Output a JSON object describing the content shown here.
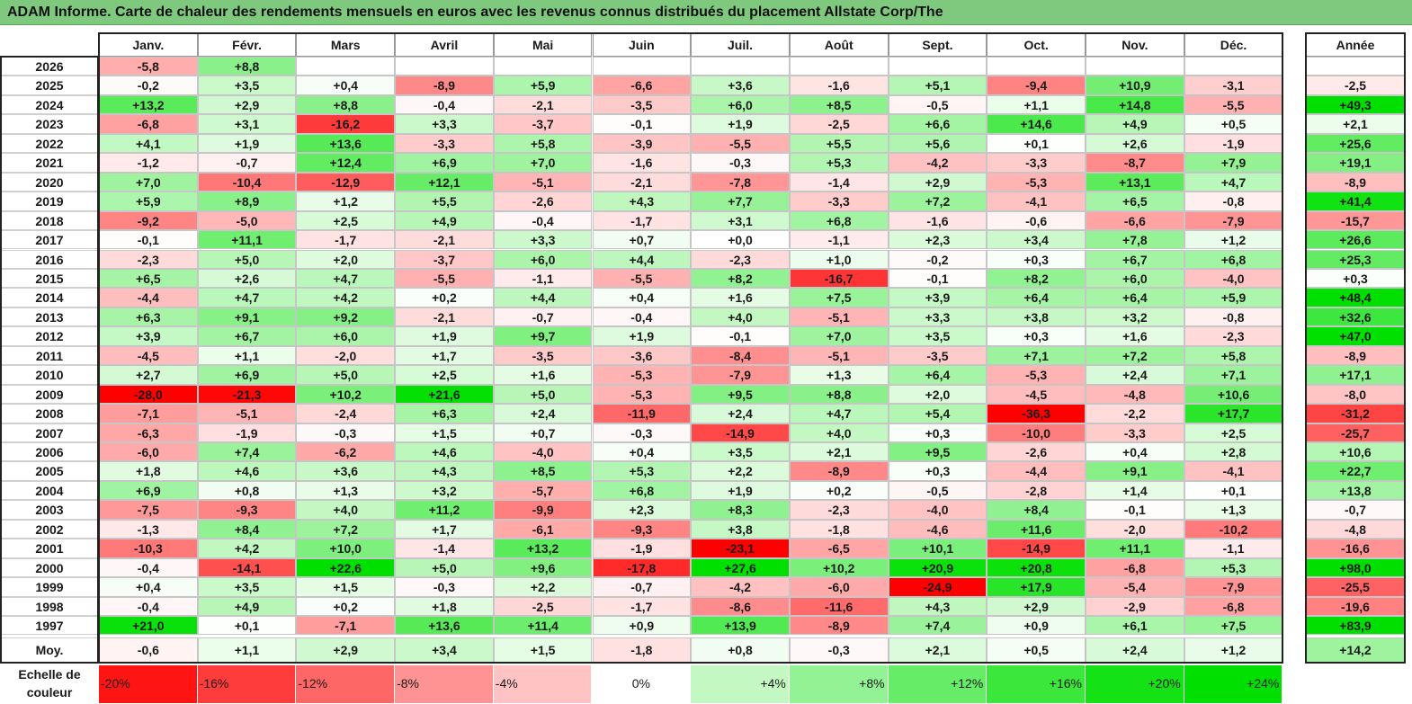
{
  "title": "ADAM Informe. Carte de chaleur des rendements mensuels en euros avec les revenus connus distribués du placement Allstate Corp/The",
  "chart_data": {
    "type": "heatmap",
    "columns": [
      "Janv.",
      "Févr.",
      "Mars",
      "Avril",
      "Mai",
      "Juin",
      "Juil.",
      "Août",
      "Sept.",
      "Oct.",
      "Nov.",
      "Déc."
    ],
    "year_header": "Année",
    "rows": [
      {
        "label": "2026",
        "cells": [
          "-5,8",
          "+8,8",
          "",
          "",
          "",
          "",
          "",
          "",
          "",
          "",
          "",
          ""
        ],
        "year": ""
      },
      {
        "label": "2025",
        "cells": [
          "-0,2",
          "+3,5",
          "+0,4",
          "-8,9",
          "+5,9",
          "-6,6",
          "+3,6",
          "-1,6",
          "+5,1",
          "-9,4",
          "+10,9",
          "-3,1"
        ],
        "year": "-2,5"
      },
      {
        "label": "2024",
        "cells": [
          "+13,2",
          "+2,9",
          "+8,8",
          "-0,4",
          "-2,1",
          "-3,5",
          "+6,0",
          "+8,5",
          "-0,5",
          "+1,1",
          "+14,8",
          "-5,5"
        ],
        "year": "+49,3"
      },
      {
        "label": "2023",
        "cells": [
          "-6,8",
          "+3,1",
          "-16,2",
          "+3,3",
          "-3,7",
          "-0,1",
          "+1,9",
          "-2,5",
          "+6,6",
          "+14,6",
          "+4,9",
          "+0,5"
        ],
        "year": "+2,1"
      },
      {
        "label": "2022",
        "cells": [
          "+4,1",
          "+1,9",
          "+13,6",
          "-3,3",
          "+5,8",
          "-3,9",
          "-5,5",
          "+5,5",
          "+5,6",
          "+0,1",
          "+2,6",
          "-1,9"
        ],
        "year": "+25,6"
      },
      {
        "label": "2021",
        "cells": [
          "-1,2",
          "-0,7",
          "+12,4",
          "+6,9",
          "+7,0",
          "-1,6",
          "-0,3",
          "+5,3",
          "-4,2",
          "-3,3",
          "-8,7",
          "+7,9"
        ],
        "year": "+19,1"
      },
      {
        "label": "2020",
        "cells": [
          "+7,0",
          "-10,4",
          "-12,9",
          "+12,1",
          "-5,1",
          "-2,1",
          "-7,8",
          "-1,4",
          "+2,9",
          "-5,3",
          "+13,1",
          "+4,7"
        ],
        "year": "-8,9"
      },
      {
        "label": "2019",
        "cells": [
          "+5,9",
          "+8,9",
          "+1,2",
          "+5,5",
          "-2,6",
          "+4,3",
          "+7,7",
          "-3,3",
          "+7,2",
          "-4,1",
          "+6,5",
          "-0,8"
        ],
        "year": "+41,4"
      },
      {
        "label": "2018",
        "cells": [
          "-9,2",
          "-5,0",
          "+2,5",
          "+4,9",
          "-0,4",
          "-1,7",
          "+3,1",
          "+6,8",
          "-1,6",
          "-0,6",
          "-6,6",
          "-7,9"
        ],
        "year": "-15,7"
      },
      {
        "label": "2017",
        "cells": [
          "-0,1",
          "+11,1",
          "-1,7",
          "-2,1",
          "+3,3",
          "+0,7",
          "+0,0",
          "-1,1",
          "+2,3",
          "+3,4",
          "+7,8",
          "+1,2"
        ],
        "year": "+26,6"
      },
      {
        "label": "2016",
        "cells": [
          "-2,3",
          "+5,0",
          "+2,0",
          "-3,7",
          "+6,0",
          "+4,4",
          "-2,3",
          "+1,0",
          "-0,2",
          "+0,3",
          "+6,7",
          "+6,8"
        ],
        "year": "+25,3"
      },
      {
        "label": "2015",
        "cells": [
          "+6,5",
          "+2,6",
          "+4,7",
          "-5,5",
          "-1,1",
          "-5,5",
          "+8,2",
          "-16,7",
          "-0,1",
          "+8,2",
          "+6,0",
          "-4,0"
        ],
        "year": "+0,3"
      },
      {
        "label": "2014",
        "cells": [
          "-4,4",
          "+4,7",
          "+4,2",
          "+0,2",
          "+4,4",
          "+0,4",
          "+1,6",
          "+7,5",
          "+3,9",
          "+6,4",
          "+6,4",
          "+5,9"
        ],
        "year": "+48,4"
      },
      {
        "label": "2013",
        "cells": [
          "+6,3",
          "+9,1",
          "+9,2",
          "-2,1",
          "-0,7",
          "-0,4",
          "+4,0",
          "-5,1",
          "+3,3",
          "+3,8",
          "+3,2",
          "-0,8"
        ],
        "year": "+32,6"
      },
      {
        "label": "2012",
        "cells": [
          "+3,9",
          "+6,7",
          "+6,0",
          "+1,9",
          "+9,7",
          "+1,9",
          "-0,1",
          "+7,0",
          "+3,5",
          "+0,3",
          "+1,6",
          "-2,3"
        ],
        "year": "+47,0"
      },
      {
        "label": "2011",
        "cells": [
          "-4,5",
          "+1,1",
          "-2,0",
          "+1,7",
          "-3,5",
          "-3,6",
          "-8,4",
          "-5,1",
          "-3,5",
          "+7,1",
          "+7,2",
          "+5,8"
        ],
        "year": "-8,9"
      },
      {
        "label": "2010",
        "cells": [
          "+2,7",
          "+6,9",
          "+5,0",
          "+2,5",
          "+1,6",
          "-5,3",
          "-7,9",
          "+1,3",
          "+6,4",
          "-5,3",
          "+2,4",
          "+7,1"
        ],
        "year": "+17,1"
      },
      {
        "label": "2009",
        "cells": [
          "-28,0",
          "-21,3",
          "+10,2",
          "+21,6",
          "+5,0",
          "-5,3",
          "+9,5",
          "+8,8",
          "+2,0",
          "-4,5",
          "-4,8",
          "+10,6"
        ],
        "year": "-8,0"
      },
      {
        "label": "2008",
        "cells": [
          "-7,1",
          "-5,1",
          "-2,4",
          "+6,3",
          "+2,4",
          "-11,9",
          "+2,4",
          "+4,7",
          "+5,4",
          "-36,3",
          "-2,2",
          "+17,7"
        ],
        "year": "-31,2"
      },
      {
        "label": "2007",
        "cells": [
          "-6,3",
          "-1,9",
          "-0,3",
          "+1,5",
          "+0,7",
          "-0,3",
          "-14,9",
          "+4,0",
          "+0,3",
          "-10,0",
          "-3,3",
          "+2,5"
        ],
        "year": "-25,7"
      },
      {
        "label": "2006",
        "cells": [
          "-6,0",
          "+7,4",
          "-6,2",
          "+4,6",
          "-4,0",
          "+0,4",
          "+3,5",
          "+2,1",
          "+9,5",
          "-2,6",
          "+0,4",
          "+2,8"
        ],
        "year": "+10,6"
      },
      {
        "label": "2005",
        "cells": [
          "+1,8",
          "+4,6",
          "+3,6",
          "+4,3",
          "+8,5",
          "+5,3",
          "+2,2",
          "-8,9",
          "+0,3",
          "-4,4",
          "+9,1",
          "-4,1"
        ],
        "year": "+22,7"
      },
      {
        "label": "2004",
        "cells": [
          "+6,9",
          "+0,8",
          "+1,3",
          "+3,2",
          "-5,7",
          "+6,8",
          "+1,9",
          "+0,2",
          "-0,5",
          "-2,8",
          "+1,4",
          "+0,1"
        ],
        "year": "+13,8"
      },
      {
        "label": "2003",
        "cells": [
          "-7,5",
          "-9,3",
          "+4,0",
          "+11,2",
          "-9,9",
          "+2,3",
          "+8,3",
          "-2,3",
          "-4,0",
          "+8,4",
          "-0,1",
          "+1,3"
        ],
        "year": "-0,7"
      },
      {
        "label": "2002",
        "cells": [
          "-1,3",
          "+8,4",
          "+7,2",
          "+1,7",
          "-6,1",
          "-9,3",
          "+3,8",
          "-1,8",
          "-4,6",
          "+11,6",
          "-2,0",
          "-10,2"
        ],
        "year": "-4,8"
      },
      {
        "label": "2001",
        "cells": [
          "-10,3",
          "+4,2",
          "+10,0",
          "-1,4",
          "+13,2",
          "-1,9",
          "-23,1",
          "-6,5",
          "+10,1",
          "-14,9",
          "+11,1",
          "-1,1"
        ],
        "year": "-16,6"
      },
      {
        "label": "2000",
        "cells": [
          "-0,4",
          "-14,1",
          "+22,6",
          "+5,0",
          "+9,6",
          "-17,8",
          "+27,6",
          "+10,2",
          "+20,9",
          "+20,8",
          "-6,8",
          "+5,3"
        ],
        "year": "+98,0"
      },
      {
        "label": "1999",
        "cells": [
          "+0,4",
          "+3,5",
          "+1,5",
          "-0,3",
          "+2,2",
          "-0,7",
          "-4,2",
          "-6,0",
          "-24,9",
          "+17,9",
          "-5,4",
          "-7,9"
        ],
        "year": "-25,5"
      },
      {
        "label": "1998",
        "cells": [
          "-0,4",
          "+4,9",
          "+0,2",
          "+1,8",
          "-2,5",
          "-1,7",
          "-8,6",
          "-11,6",
          "+4,3",
          "+2,9",
          "-2,9",
          "-6,8"
        ],
        "year": "-19,6"
      },
      {
        "label": "1997",
        "cells": [
          "+21,0",
          "+0,1",
          "-7,1",
          "+13,6",
          "+11,4",
          "+0,9",
          "+13,9",
          "-8,9",
          "+7,4",
          "+0,9",
          "+6,1",
          "+7,5"
        ],
        "year": "+83,9"
      }
    ],
    "average": {
      "label": "Moy.",
      "cells": [
        "-0,6",
        "+1,1",
        "+2,9",
        "+3,4",
        "+1,5",
        "-1,8",
        "+0,8",
        "-0,3",
        "+2,1",
        "+0,5",
        "+2,4",
        "+1,2"
      ],
      "year": "+14,2"
    },
    "legend": {
      "label_line1": "Echelle de",
      "label_line2": "couleur",
      "stops": [
        {
          "label": "-20%",
          "value": -20
        },
        {
          "label": "-16%",
          "value": -16
        },
        {
          "label": "-12%",
          "value": -12
        },
        {
          "label": "-8%",
          "value": -8
        },
        {
          "label": "-4%",
          "value": -4
        },
        {
          "label": "0%",
          "value": 0
        },
        {
          "label": "+4%",
          "value": 4
        },
        {
          "label": "+8%",
          "value": 8
        },
        {
          "label": "+12%",
          "value": 12
        },
        {
          "label": "+16%",
          "value": 16
        },
        {
          "label": "+20%",
          "value": 20
        },
        {
          "label": "+24%",
          "value": 24
        }
      ]
    },
    "colors": {
      "negative": "#ff0000",
      "neutral": "#ffffff",
      "positive": "#00e000"
    }
  }
}
